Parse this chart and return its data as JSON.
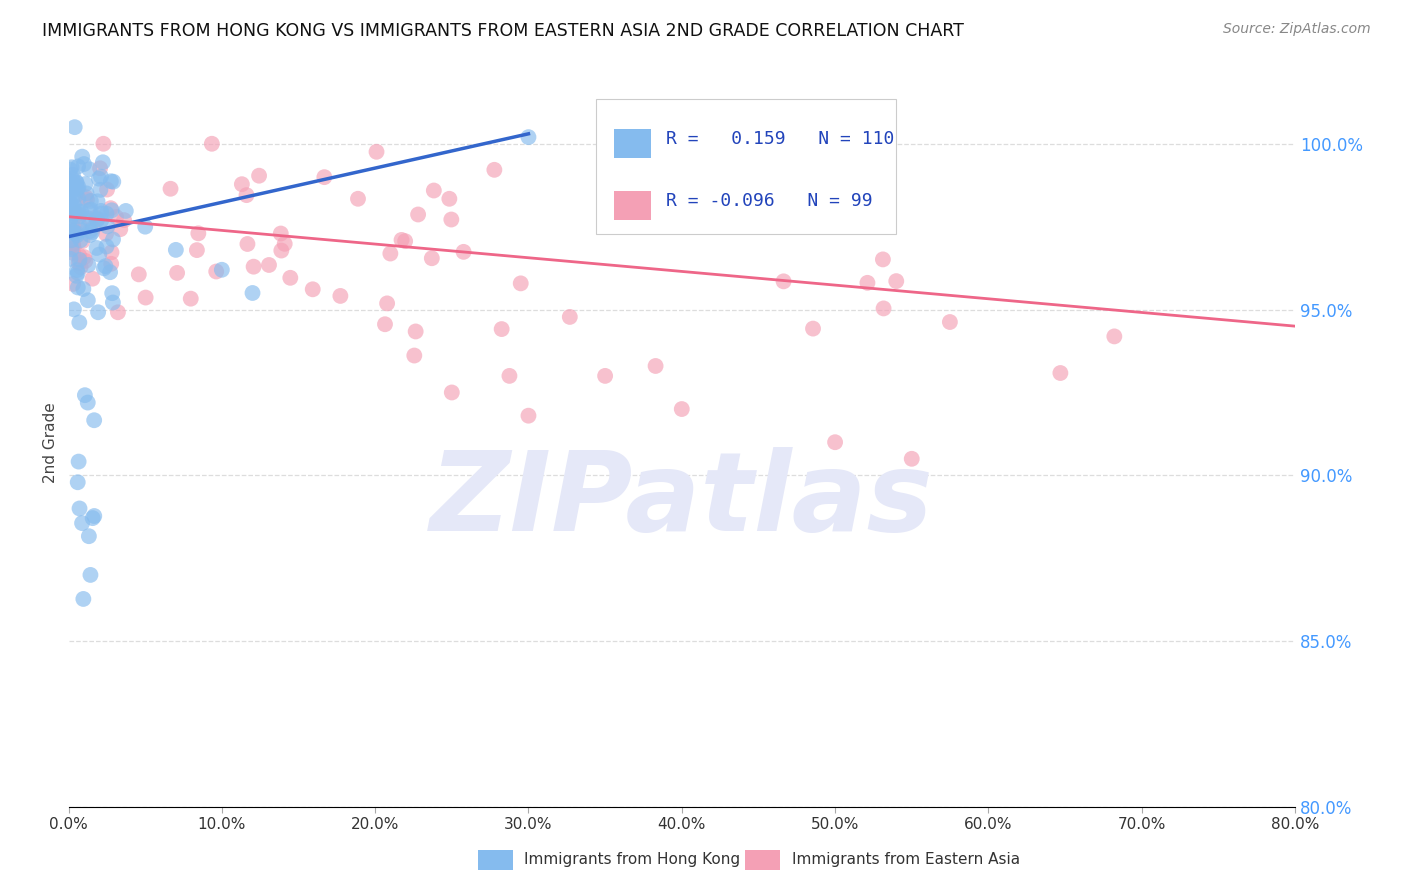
{
  "title": "IMMIGRANTS FROM HONG KONG VS IMMIGRANTS FROM EASTERN ASIA 2ND GRADE CORRELATION CHART",
  "source": "Source: ZipAtlas.com",
  "ylabel": "2nd Grade",
  "xmin": 0.0,
  "xmax": 80.0,
  "ymin": 80.0,
  "ymax": 102.0,
  "yticks": [
    80.0,
    85.0,
    90.0,
    95.0,
    100.0
  ],
  "xticks": [
    0.0,
    10.0,
    20.0,
    30.0,
    40.0,
    50.0,
    60.0,
    70.0,
    80.0
  ],
  "blue_R": 0.159,
  "blue_N": 110,
  "pink_R": -0.096,
  "pink_N": 99,
  "blue_color": "#85BBEE",
  "pink_color": "#F4A0B5",
  "blue_line_color": "#3366CC",
  "pink_line_color": "#EE6688",
  "legend_text_color": "#2244BB",
  "right_axis_color": "#4499FF",
  "background_color": "#FFFFFF",
  "grid_color": "#DDDDDD",
  "watermark_text": "ZIPatlas",
  "blue_line_x0": 0.0,
  "blue_line_y0": 97.2,
  "blue_line_x1": 30.0,
  "blue_line_y1": 100.3,
  "pink_line_x0": 0.0,
  "pink_line_y0": 97.8,
  "pink_line_x1": 80.0,
  "pink_line_y1": 94.5
}
